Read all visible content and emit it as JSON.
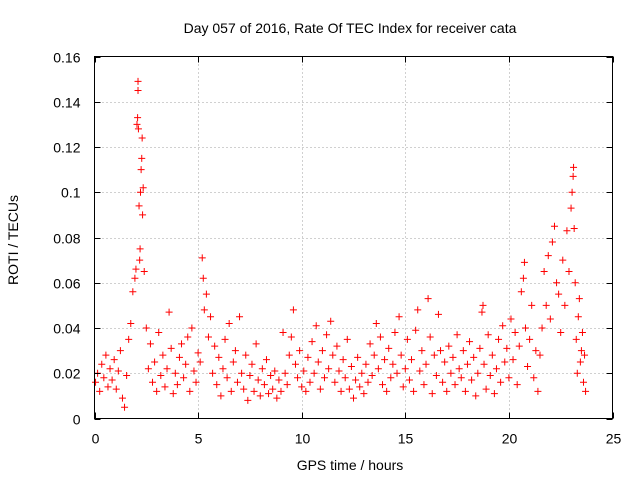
{
  "chart_data": {
    "type": "scatter",
    "title": "Day 057 of 2016, Rate Of TEC Index for receiver cata",
    "xlabel": "GPS time / hours",
    "ylabel": "ROTI / TECUs",
    "xlim": [
      0,
      25
    ],
    "ylim": [
      0,
      0.16
    ],
    "x_ticks": [
      0,
      5,
      10,
      15,
      20,
      25
    ],
    "x_tick_labels": [
      "0",
      "5",
      "10",
      "15",
      "20",
      "25"
    ],
    "y_ticks": [
      0,
      0.02,
      0.04,
      0.06,
      0.08,
      0.1,
      0.12,
      0.14,
      0.16
    ],
    "y_tick_labels": [
      "0",
      "0.02",
      "0.04",
      "0.06",
      "0.08",
      "0.1",
      "0.12",
      "0.14",
      "0.16"
    ],
    "grid": true,
    "marker": "+",
    "marker_color": "#ff0000",
    "series": [
      {
        "name": "ROTI",
        "points": [
          [
            0.05,
            0.016
          ],
          [
            0.15,
            0.02
          ],
          [
            0.25,
            0.012
          ],
          [
            0.35,
            0.024
          ],
          [
            0.45,
            0.018
          ],
          [
            0.55,
            0.028
          ],
          [
            0.65,
            0.014
          ],
          [
            0.75,
            0.022
          ],
          [
            0.85,
            0.017
          ],
          [
            0.95,
            0.026
          ],
          [
            1.05,
            0.013
          ],
          [
            1.15,
            0.021
          ],
          [
            1.25,
            0.03
          ],
          [
            1.35,
            0.009
          ],
          [
            1.45,
            0.005
          ],
          [
            1.55,
            0.019
          ],
          [
            1.65,
            0.035
          ],
          [
            1.75,
            0.042
          ],
          [
            1.85,
            0.056
          ],
          [
            1.95,
            0.062
          ],
          [
            2.0,
            0.066
          ],
          [
            2.05,
            0.13
          ],
          [
            2.08,
            0.133
          ],
          [
            2.1,
            0.145
          ],
          [
            2.1,
            0.149
          ],
          [
            2.12,
            0.128
          ],
          [
            2.15,
            0.094
          ],
          [
            2.18,
            0.07
          ],
          [
            2.2,
            0.075
          ],
          [
            2.22,
            0.1
          ],
          [
            2.25,
            0.11
          ],
          [
            2.28,
            0.115
          ],
          [
            2.3,
            0.124
          ],
          [
            2.32,
            0.09
          ],
          [
            2.35,
            0.102
          ],
          [
            2.4,
            0.065
          ],
          [
            2.5,
            0.04
          ],
          [
            2.6,
            0.022
          ],
          [
            2.7,
            0.033
          ],
          [
            2.8,
            0.016
          ],
          [
            2.9,
            0.025
          ],
          [
            3.0,
            0.012
          ],
          [
            3.1,
            0.038
          ],
          [
            3.2,
            0.019
          ],
          [
            3.3,
            0.028
          ],
          [
            3.4,
            0.014
          ],
          [
            3.5,
            0.022
          ],
          [
            3.6,
            0.047
          ],
          [
            3.7,
            0.031
          ],
          [
            3.8,
            0.011
          ],
          [
            3.9,
            0.02
          ],
          [
            4.0,
            0.015
          ],
          [
            4.1,
            0.027
          ],
          [
            4.2,
            0.033
          ],
          [
            4.3,
            0.018
          ],
          [
            4.4,
            0.024
          ],
          [
            4.5,
            0.036
          ],
          [
            4.6,
            0.012
          ],
          [
            4.7,
            0.04
          ],
          [
            4.8,
            0.021
          ],
          [
            4.9,
            0.016
          ],
          [
            5.0,
            0.029
          ],
          [
            5.1,
            0.025
          ],
          [
            5.2,
            0.071
          ],
          [
            5.25,
            0.062
          ],
          [
            5.3,
            0.048
          ],
          [
            5.4,
            0.055
          ],
          [
            5.5,
            0.036
          ],
          [
            5.6,
            0.045
          ],
          [
            5.7,
            0.02
          ],
          [
            5.8,
            0.032
          ],
          [
            5.9,
            0.015
          ],
          [
            6.0,
            0.027
          ],
          [
            6.1,
            0.01
          ],
          [
            6.2,
            0.022
          ],
          [
            6.3,
            0.035
          ],
          [
            6.4,
            0.018
          ],
          [
            6.5,
            0.042
          ],
          [
            6.6,
            0.012
          ],
          [
            6.7,
            0.025
          ],
          [
            6.8,
            0.03
          ],
          [
            6.9,
            0.016
          ],
          [
            7.0,
            0.045
          ],
          [
            7.1,
            0.02
          ],
          [
            7.2,
            0.013
          ],
          [
            7.3,
            0.028
          ],
          [
            7.4,
            0.008
          ],
          [
            7.5,
            0.019
          ],
          [
            7.6,
            0.024
          ],
          [
            7.7,
            0.012
          ],
          [
            7.8,
            0.033
          ],
          [
            7.9,
            0.017
          ],
          [
            8.0,
            0.01
          ],
          [
            8.1,
            0.022
          ],
          [
            8.2,
            0.015
          ],
          [
            8.3,
            0.026
          ],
          [
            8.4,
            0.011
          ],
          [
            8.5,
            0.019
          ],
          [
            8.6,
            0.013
          ],
          [
            8.7,
            0.021
          ],
          [
            8.8,
            0.009
          ],
          [
            8.9,
            0.017
          ],
          [
            9.0,
            0.012
          ],
          [
            9.1,
            0.038
          ],
          [
            9.2,
            0.02
          ],
          [
            9.3,
            0.015
          ],
          [
            9.4,
            0.028
          ],
          [
            9.5,
            0.036
          ],
          [
            9.6,
            0.048
          ],
          [
            9.7,
            0.024
          ],
          [
            9.8,
            0.018
          ],
          [
            9.9,
            0.03
          ],
          [
            10.0,
            0.014
          ],
          [
            10.1,
            0.021
          ],
          [
            10.2,
            0.012
          ],
          [
            10.3,
            0.027
          ],
          [
            10.4,
            0.016
          ],
          [
            10.5,
            0.034
          ],
          [
            10.6,
            0.02
          ],
          [
            10.7,
            0.041
          ],
          [
            10.8,
            0.025
          ],
          [
            10.9,
            0.013
          ],
          [
            11.0,
            0.03
          ],
          [
            11.1,
            0.018
          ],
          [
            11.2,
            0.037
          ],
          [
            11.3,
            0.022
          ],
          [
            11.4,
            0.043
          ],
          [
            11.5,
            0.028
          ],
          [
            11.6,
            0.016
          ],
          [
            11.7,
            0.032
          ],
          [
            11.8,
            0.021
          ],
          [
            11.9,
            0.012
          ],
          [
            12.0,
            0.026
          ],
          [
            12.1,
            0.018
          ],
          [
            12.2,
            0.035
          ],
          [
            12.3,
            0.013
          ],
          [
            12.4,
            0.023
          ],
          [
            12.5,
            0.009
          ],
          [
            12.6,
            0.017
          ],
          [
            12.7,
            0.027
          ],
          [
            12.8,
            0.014
          ],
          [
            12.9,
            0.02
          ],
          [
            13.0,
            0.011
          ],
          [
            13.1,
            0.024
          ],
          [
            13.2,
            0.016
          ],
          [
            13.3,
            0.033
          ],
          [
            13.4,
            0.019
          ],
          [
            13.5,
            0.028
          ],
          [
            13.6,
            0.042
          ],
          [
            13.7,
            0.022
          ],
          [
            13.8,
            0.036
          ],
          [
            13.9,
            0.015
          ],
          [
            14.0,
            0.026
          ],
          [
            14.1,
            0.012
          ],
          [
            14.2,
            0.031
          ],
          [
            14.3,
            0.018
          ],
          [
            14.4,
            0.024
          ],
          [
            14.5,
            0.038
          ],
          [
            14.6,
            0.02
          ],
          [
            14.7,
            0.045
          ],
          [
            14.8,
            0.028
          ],
          [
            14.9,
            0.014
          ],
          [
            15.0,
            0.022
          ],
          [
            15.1,
            0.035
          ],
          [
            15.2,
            0.017
          ],
          [
            15.3,
            0.026
          ],
          [
            15.4,
            0.012
          ],
          [
            15.5,
            0.039
          ],
          [
            15.6,
            0.048
          ],
          [
            15.7,
            0.021
          ],
          [
            15.8,
            0.03
          ],
          [
            15.9,
            0.015
          ],
          [
            16.0,
            0.024
          ],
          [
            16.1,
            0.053
          ],
          [
            16.2,
            0.036
          ],
          [
            16.3,
            0.011
          ],
          [
            16.4,
            0.028
          ],
          [
            16.5,
            0.019
          ],
          [
            16.6,
            0.046
          ],
          [
            16.7,
            0.03
          ],
          [
            16.8,
            0.016
          ],
          [
            16.9,
            0.025
          ],
          [
            17.0,
            0.012
          ],
          [
            17.1,
            0.032
          ],
          [
            17.2,
            0.02
          ],
          [
            17.3,
            0.027
          ],
          [
            17.4,
            0.015
          ],
          [
            17.5,
            0.037
          ],
          [
            17.6,
            0.022
          ],
          [
            17.7,
            0.018
          ],
          [
            17.8,
            0.03
          ],
          [
            17.9,
            0.012
          ],
          [
            18.0,
            0.024
          ],
          [
            18.1,
            0.034
          ],
          [
            18.2,
            0.017
          ],
          [
            18.3,
            0.027
          ],
          [
            18.4,
            0.01
          ],
          [
            18.5,
            0.02
          ],
          [
            18.6,
            0.031
          ],
          [
            18.7,
            0.047
          ],
          [
            18.75,
            0.05
          ],
          [
            18.8,
            0.024
          ],
          [
            18.9,
            0.013
          ],
          [
            19.0,
            0.037
          ],
          [
            19.1,
            0.019
          ],
          [
            19.2,
            0.028
          ],
          [
            19.3,
            0.011
          ],
          [
            19.4,
            0.022
          ],
          [
            19.5,
            0.035
          ],
          [
            19.6,
            0.016
          ],
          [
            19.7,
            0.041
          ],
          [
            19.8,
            0.025
          ],
          [
            19.9,
            0.031
          ],
          [
            20.0,
            0.018
          ],
          [
            20.1,
            0.044
          ],
          [
            20.2,
            0.026
          ],
          [
            20.3,
            0.038
          ],
          [
            20.4,
            0.015
          ],
          [
            20.5,
            0.032
          ],
          [
            20.6,
            0.056
          ],
          [
            20.7,
            0.062
          ],
          [
            20.75,
            0.069
          ],
          [
            20.8,
            0.04
          ],
          [
            20.9,
            0.023
          ],
          [
            21.0,
            0.035
          ],
          [
            21.1,
            0.05
          ],
          [
            21.2,
            0.018
          ],
          [
            21.3,
            0.03
          ],
          [
            21.4,
            0.012
          ],
          [
            21.5,
            0.028
          ],
          [
            21.6,
            0.04
          ],
          [
            21.7,
            0.065
          ],
          [
            21.8,
            0.05
          ],
          [
            21.9,
            0.072
          ],
          [
            22.0,
            0.044
          ],
          [
            22.1,
            0.078
          ],
          [
            22.2,
            0.085
          ],
          [
            22.3,
            0.06
          ],
          [
            22.4,
            0.055
          ],
          [
            22.5,
            0.038
          ],
          [
            22.6,
            0.07
          ],
          [
            22.7,
            0.05
          ],
          [
            22.8,
            0.083
          ],
          [
            22.9,
            0.065
          ],
          [
            23.0,
            0.093
          ],
          [
            23.05,
            0.1
          ],
          [
            23.1,
            0.107
          ],
          [
            23.12,
            0.111
          ],
          [
            23.15,
            0.084
          ],
          [
            23.2,
            0.06
          ],
          [
            23.25,
            0.035
          ],
          [
            23.3,
            0.02
          ],
          [
            23.35,
            0.045
          ],
          [
            23.4,
            0.053
          ],
          [
            23.45,
            0.025
          ],
          [
            23.5,
            0.03
          ],
          [
            23.55,
            0.038
          ],
          [
            23.6,
            0.016
          ],
          [
            23.65,
            0.028
          ],
          [
            23.7,
            0.012
          ]
        ]
      }
    ]
  }
}
